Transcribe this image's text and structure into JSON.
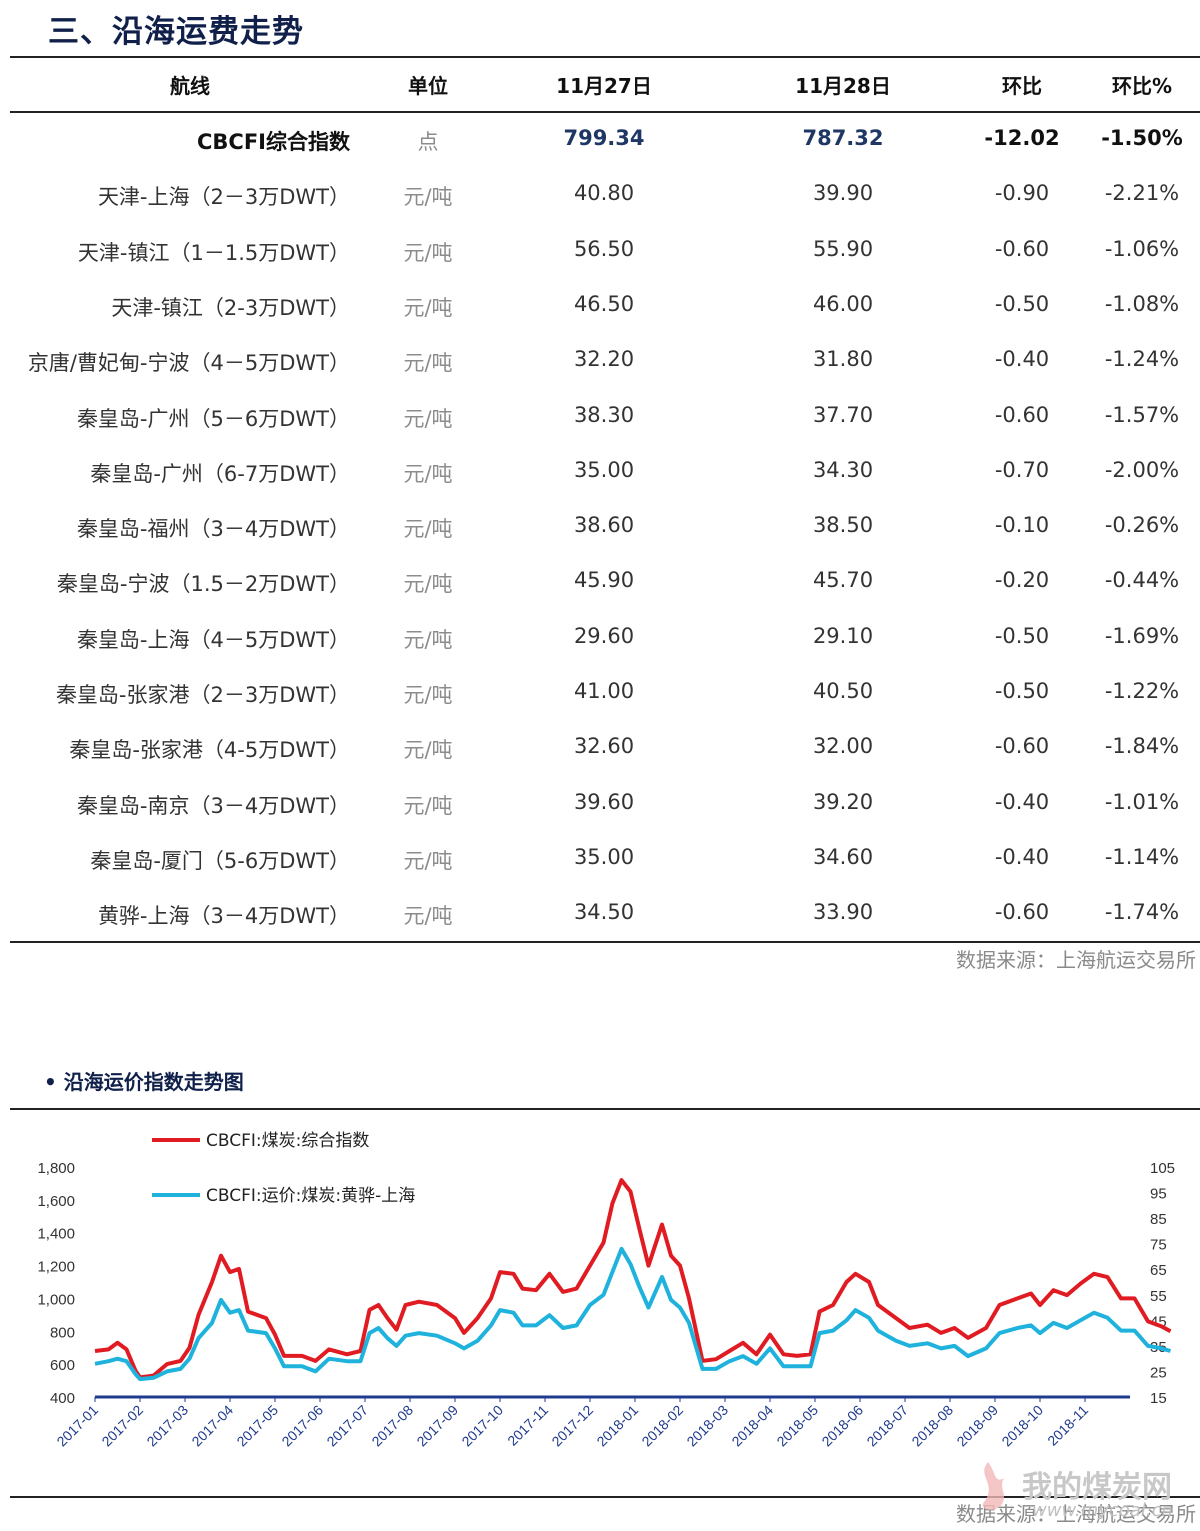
{
  "section_title": "三、沿海运费走势",
  "table": {
    "headers": [
      "航线",
      "单位",
      "11月27日",
      "11月28日",
      "环比",
      "环比%"
    ],
    "rows": [
      {
        "route": "CBCFI综合指数",
        "unit": "点",
        "d27": "799.34",
        "d28": "787.32",
        "chg": "-12.02",
        "pct": "-1.50%"
      },
      {
        "route": "天津-上海（2－3万DWT）",
        "unit": "元/吨",
        "d27": "40.80",
        "d28": "39.90",
        "chg": "-0.90",
        "pct": "-2.21%"
      },
      {
        "route": "天津-镇江（1－1.5万DWT）",
        "unit": "元/吨",
        "d27": "56.50",
        "d28": "55.90",
        "chg": "-0.60",
        "pct": "-1.06%"
      },
      {
        "route": "天津-镇江（2-3万DWT）",
        "unit": "元/吨",
        "d27": "46.50",
        "d28": "46.00",
        "chg": "-0.50",
        "pct": "-1.08%"
      },
      {
        "route": "京唐/曹妃甸-宁波（4－5万DWT）",
        "unit": "元/吨",
        "d27": "32.20",
        "d28": "31.80",
        "chg": "-0.40",
        "pct": "-1.24%"
      },
      {
        "route": "秦皇岛-广州（5－6万DWT）",
        "unit": "元/吨",
        "d27": "38.30",
        "d28": "37.70",
        "chg": "-0.60",
        "pct": "-1.57%"
      },
      {
        "route": "秦皇岛-广州（6-7万DWT）",
        "unit": "元/吨",
        "d27": "35.00",
        "d28": "34.30",
        "chg": "-0.70",
        "pct": "-2.00%"
      },
      {
        "route": "秦皇岛-福州（3－4万DWT）",
        "unit": "元/吨",
        "d27": "38.60",
        "d28": "38.50",
        "chg": "-0.10",
        "pct": "-0.26%"
      },
      {
        "route": "秦皇岛-宁波（1.5－2万DWT）",
        "unit": "元/吨",
        "d27": "45.90",
        "d28": "45.70",
        "chg": "-0.20",
        "pct": "-0.44%"
      },
      {
        "route": "秦皇岛-上海（4－5万DWT）",
        "unit": "元/吨",
        "d27": "29.60",
        "d28": "29.10",
        "chg": "-0.50",
        "pct": "-1.69%"
      },
      {
        "route": "秦皇岛-张家港（2－3万DWT）",
        "unit": "元/吨",
        "d27": "41.00",
        "d28": "40.50",
        "chg": "-0.50",
        "pct": "-1.22%"
      },
      {
        "route": "秦皇岛-张家港（4-5万DWT）",
        "unit": "元/吨",
        "d27": "32.60",
        "d28": "32.00",
        "chg": "-0.60",
        "pct": "-1.84%"
      },
      {
        "route": "秦皇岛-南京（3－4万DWT）",
        "unit": "元/吨",
        "d27": "39.60",
        "d28": "39.20",
        "chg": "-0.40",
        "pct": "-1.01%"
      },
      {
        "route": "秦皇岛-厦门（5-6万DWT）",
        "unit": "元/吨",
        "d27": "35.00",
        "d28": "34.60",
        "chg": "-0.40",
        "pct": "-1.14%"
      },
      {
        "route": "黄骅-上海（3－4万DWT）",
        "unit": "元/吨",
        "d27": "34.50",
        "d28": "33.90",
        "chg": "-0.60",
        "pct": "-1.74%"
      }
    ]
  },
  "source_text": "数据来源：上海航运交易所",
  "chart_title": "• 沿海运价指数走势图",
  "chart_source_text": "数据来源：上海航运交易所",
  "watermark": {
    "text": "我的煤炭网",
    "url": "www.mycoal.cn"
  },
  "colors": {
    "title": "#10204a",
    "series1": "#e01b22",
    "series2": "#1eb2dc",
    "axis": "#1f3b8c"
  },
  "chart_data": {
    "type": "line",
    "x": [
      "2017-01",
      "2017-02",
      "2017-03",
      "2017-04",
      "2017-05",
      "2017-06",
      "2017-07",
      "2017-08",
      "2017-09",
      "2017-10",
      "2017-11",
      "2017-12",
      "2018-01",
      "2018-02",
      "2018-03",
      "2018-04",
      "2018-05",
      "2018-06",
      "2018-07",
      "2018-08",
      "2018-09",
      "2018-10",
      "2018-11"
    ],
    "ylim": [
      400,
      1800
    ],
    "yticks": [
      "400",
      "600",
      "800",
      "1,000",
      "1,200",
      "1,400",
      "1,600",
      "1,800"
    ],
    "y2lim": [
      15,
      105
    ],
    "y2ticks": [
      "15",
      "25",
      "35",
      "45",
      "55",
      "65",
      "75",
      "85",
      "95",
      "105"
    ],
    "legend_position": "top-left",
    "series": [
      {
        "name": "CBCFI:煤炭:综合指数",
        "axis": "left",
        "points": [
          [
            0,
            680
          ],
          [
            0.3,
            690
          ],
          [
            0.5,
            730
          ],
          [
            0.7,
            690
          ],
          [
            0.9,
            560
          ],
          [
            1.0,
            520
          ],
          [
            1.3,
            530
          ],
          [
            1.6,
            600
          ],
          [
            1.9,
            620
          ],
          [
            2.1,
            700
          ],
          [
            2.3,
            900
          ],
          [
            2.6,
            1100
          ],
          [
            2.8,
            1260
          ],
          [
            3.0,
            1160
          ],
          [
            3.2,
            1180
          ],
          [
            3.4,
            920
          ],
          [
            3.8,
            880
          ],
          [
            4.0,
            780
          ],
          [
            4.2,
            650
          ],
          [
            4.6,
            650
          ],
          [
            4.9,
            620
          ],
          [
            5.2,
            690
          ],
          [
            5.6,
            660
          ],
          [
            5.9,
            680
          ],
          [
            6.1,
            930
          ],
          [
            6.3,
            960
          ],
          [
            6.5,
            880
          ],
          [
            6.7,
            810
          ],
          [
            6.9,
            960
          ],
          [
            7.2,
            980
          ],
          [
            7.6,
            960
          ],
          [
            8.0,
            880
          ],
          [
            8.2,
            790
          ],
          [
            8.5,
            880
          ],
          [
            8.8,
            1000
          ],
          [
            9.0,
            1160
          ],
          [
            9.3,
            1150
          ],
          [
            9.5,
            1060
          ],
          [
            9.8,
            1050
          ],
          [
            10.1,
            1150
          ],
          [
            10.4,
            1040
          ],
          [
            10.7,
            1060
          ],
          [
            11.0,
            1200
          ],
          [
            11.3,
            1340
          ],
          [
            11.5,
            1580
          ],
          [
            11.7,
            1720
          ],
          [
            11.9,
            1650
          ],
          [
            12.1,
            1420
          ],
          [
            12.3,
            1200
          ],
          [
            12.6,
            1450
          ],
          [
            12.8,
            1260
          ],
          [
            13.0,
            1200
          ],
          [
            13.2,
            1000
          ],
          [
            13.5,
            620
          ],
          [
            13.8,
            630
          ],
          [
            14.1,
            680
          ],
          [
            14.4,
            730
          ],
          [
            14.7,
            660
          ],
          [
            15.0,
            780
          ],
          [
            15.3,
            660
          ],
          [
            15.6,
            650
          ],
          [
            15.9,
            660
          ],
          [
            16.1,
            920
          ],
          [
            16.4,
            960
          ],
          [
            16.7,
            1100
          ],
          [
            16.9,
            1150
          ],
          [
            17.2,
            1100
          ],
          [
            17.4,
            960
          ],
          [
            17.8,
            880
          ],
          [
            18.1,
            820
          ],
          [
            18.5,
            840
          ],
          [
            18.8,
            790
          ],
          [
            19.1,
            820
          ],
          [
            19.4,
            760
          ],
          [
            19.8,
            820
          ],
          [
            20.1,
            960
          ],
          [
            20.5,
            1000
          ],
          [
            20.8,
            1030
          ],
          [
            21.0,
            960
          ],
          [
            21.3,
            1050
          ],
          [
            21.6,
            1020
          ],
          [
            21.9,
            1090
          ],
          [
            22.2,
            1150
          ],
          [
            22.5,
            1130
          ],
          [
            22.8,
            1000
          ],
          [
            23.1,
            1000
          ],
          [
            23.4,
            860
          ],
          [
            23.7,
            830
          ],
          [
            23.9,
            800
          ]
        ]
      },
      {
        "name": "CBCFI:运价:煤炭:黄骅-上海",
        "axis": "right",
        "points": [
          [
            0,
            28
          ],
          [
            0.3,
            29
          ],
          [
            0.5,
            30
          ],
          [
            0.7,
            29
          ],
          [
            0.9,
            24
          ],
          [
            1.0,
            22
          ],
          [
            1.3,
            22.5
          ],
          [
            1.6,
            25
          ],
          [
            1.9,
            26
          ],
          [
            2.1,
            30
          ],
          [
            2.3,
            38
          ],
          [
            2.6,
            44
          ],
          [
            2.8,
            53
          ],
          [
            3.0,
            48
          ],
          [
            3.2,
            49
          ],
          [
            3.4,
            41
          ],
          [
            3.8,
            40
          ],
          [
            4.0,
            34
          ],
          [
            4.2,
            27
          ],
          [
            4.6,
            27
          ],
          [
            4.9,
            25
          ],
          [
            5.2,
            30
          ],
          [
            5.6,
            29
          ],
          [
            5.9,
            29
          ],
          [
            6.1,
            40
          ],
          [
            6.3,
            42
          ],
          [
            6.5,
            38
          ],
          [
            6.7,
            35
          ],
          [
            6.9,
            39
          ],
          [
            7.2,
            40
          ],
          [
            7.6,
            39
          ],
          [
            8.0,
            36
          ],
          [
            8.2,
            34
          ],
          [
            8.5,
            37
          ],
          [
            8.8,
            43
          ],
          [
            9.0,
            49
          ],
          [
            9.3,
            48
          ],
          [
            9.5,
            43
          ],
          [
            9.8,
            43
          ],
          [
            10.1,
            47
          ],
          [
            10.4,
            42
          ],
          [
            10.7,
            43
          ],
          [
            11.0,
            51
          ],
          [
            11.3,
            55
          ],
          [
            11.5,
            64
          ],
          [
            11.7,
            73
          ],
          [
            11.9,
            67
          ],
          [
            12.1,
            58
          ],
          [
            12.3,
            50
          ],
          [
            12.6,
            62
          ],
          [
            12.8,
            53
          ],
          [
            13.0,
            50
          ],
          [
            13.2,
            44
          ],
          [
            13.5,
            26
          ],
          [
            13.8,
            26
          ],
          [
            14.1,
            29
          ],
          [
            14.4,
            31
          ],
          [
            14.7,
            28
          ],
          [
            15.0,
            34
          ],
          [
            15.3,
            27
          ],
          [
            15.6,
            27
          ],
          [
            15.9,
            27
          ],
          [
            16.1,
            40
          ],
          [
            16.4,
            41
          ],
          [
            16.7,
            45
          ],
          [
            16.9,
            49
          ],
          [
            17.2,
            46
          ],
          [
            17.4,
            41
          ],
          [
            17.8,
            37
          ],
          [
            18.1,
            35
          ],
          [
            18.5,
            36
          ],
          [
            18.8,
            34
          ],
          [
            19.1,
            35
          ],
          [
            19.4,
            31
          ],
          [
            19.8,
            34
          ],
          [
            20.1,
            40
          ],
          [
            20.5,
            42
          ],
          [
            20.8,
            43
          ],
          [
            21.0,
            40
          ],
          [
            21.3,
            44
          ],
          [
            21.6,
            42
          ],
          [
            21.9,
            45
          ],
          [
            22.2,
            48
          ],
          [
            22.5,
            46
          ],
          [
            22.8,
            41
          ],
          [
            23.1,
            41
          ],
          [
            23.4,
            35
          ],
          [
            23.7,
            34
          ],
          [
            23.9,
            33
          ]
        ]
      }
    ]
  }
}
